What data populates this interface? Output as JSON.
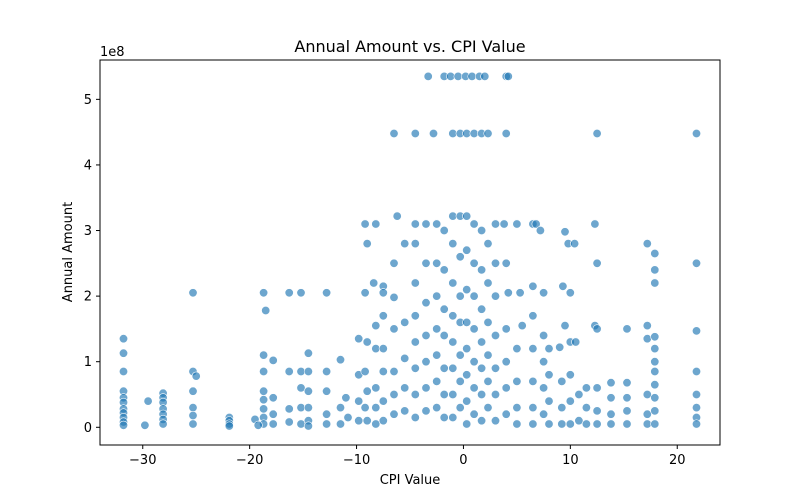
{
  "chart_data": {
    "type": "scatter",
    "title": "Annual Amount vs. CPI Value",
    "xlabel": "CPI Value",
    "ylabel": "Annual Amount",
    "y_offset_label": "1e8",
    "xlim": [
      -34,
      24
    ],
    "ylim": [
      -0.27,
      5.6
    ],
    "x_ticks": [
      -30,
      -20,
      -10,
      0,
      10,
      20
    ],
    "x_tick_labels": [
      "−30",
      "−20",
      "−10",
      "0",
      "10",
      "20"
    ],
    "y_ticks": [
      0,
      1,
      2,
      3,
      4,
      5
    ],
    "y_tick_labels": [
      "0",
      "1",
      "2",
      "3",
      "4",
      "5"
    ],
    "grid": false,
    "legend": "none",
    "colors": {
      "marker_fill": "#1f77b4",
      "marker_edge": "#ffffff",
      "axes": "#000000"
    },
    "marker_alpha": 0.65,
    "series": [
      {
        "points": [
          [
            -31.8,
            1.35
          ],
          [
            -31.8,
            1.13
          ],
          [
            -31.8,
            0.85
          ],
          [
            -31.8,
            0.55
          ],
          [
            -31.8,
            0.45
          ],
          [
            -31.8,
            0.38
          ],
          [
            -31.8,
            0.28
          ],
          [
            -31.8,
            0.22
          ],
          [
            -31.8,
            0.15
          ],
          [
            -31.8,
            0.08
          ],
          [
            -31.8,
            0.03
          ],
          [
            -29.8,
            0.03
          ],
          [
            -29.5,
            0.4
          ],
          [
            -28.1,
            0.52
          ],
          [
            -28.1,
            0.45
          ],
          [
            -28.1,
            0.38
          ],
          [
            -28.1,
            0.28
          ],
          [
            -28.1,
            0.2
          ],
          [
            -28.1,
            0.12
          ],
          [
            -28.1,
            0.05
          ],
          [
            -25.3,
            2.05
          ],
          [
            -25.3,
            0.85
          ],
          [
            -25.0,
            0.78
          ],
          [
            -25.3,
            0.55
          ],
          [
            -25.3,
            0.3
          ],
          [
            -25.3,
            0.18
          ],
          [
            -25.3,
            0.05
          ],
          [
            -21.9,
            0.15
          ],
          [
            -21.9,
            0.1
          ],
          [
            -21.9,
            0.05
          ],
          [
            -21.9,
            0.02
          ],
          [
            -18.7,
            2.05
          ],
          [
            -18.5,
            1.78
          ],
          [
            -18.7,
            1.1
          ],
          [
            -18.7,
            0.85
          ],
          [
            -18.7,
            0.55
          ],
          [
            -18.7,
            0.42
          ],
          [
            -18.7,
            0.28
          ],
          [
            -18.7,
            0.15
          ],
          [
            -18.7,
            0.05
          ],
          [
            -19.5,
            0.12
          ],
          [
            -19.2,
            0.03
          ],
          [
            -17.8,
            1.02
          ],
          [
            -17.8,
            0.45
          ],
          [
            -17.8,
            0.2
          ],
          [
            -17.8,
            0.05
          ],
          [
            -16.3,
            2.05
          ],
          [
            -16.3,
            0.85
          ],
          [
            -16.3,
            0.28
          ],
          [
            -16.3,
            0.08
          ],
          [
            -15.2,
            2.05
          ],
          [
            -15.2,
            0.85
          ],
          [
            -15.2,
            0.6
          ],
          [
            -15.2,
            0.3
          ],
          [
            -15.2,
            0.05
          ],
          [
            -14.5,
            1.13
          ],
          [
            -14.5,
            0.85
          ],
          [
            -14.5,
            0.55
          ],
          [
            -14.5,
            0.3
          ],
          [
            -14.5,
            0.1
          ],
          [
            -14.5,
            0.02
          ],
          [
            -12.8,
            2.05
          ],
          [
            -12.8,
            0.85
          ],
          [
            -12.8,
            0.55
          ],
          [
            -12.8,
            0.2
          ],
          [
            -12.8,
            0.05
          ],
          [
            -11.5,
            1.03
          ],
          [
            -11.5,
            0.3
          ],
          [
            -11.5,
            0.05
          ],
          [
            -11.0,
            0.45
          ],
          [
            -10.8,
            0.15
          ],
          [
            -9.8,
            1.35
          ],
          [
            -9.8,
            0.8
          ],
          [
            -9.8,
            0.4
          ],
          [
            -9.8,
            0.1
          ],
          [
            -9.2,
            3.1
          ],
          [
            -9.0,
            2.8
          ],
          [
            -9.2,
            2.05
          ],
          [
            -9.0,
            1.3
          ],
          [
            -9.2,
            0.85
          ],
          [
            -9.0,
            0.55
          ],
          [
            -9.2,
            0.3
          ],
          [
            -9.0,
            0.1
          ],
          [
            -8.2,
            3.1
          ],
          [
            -8.4,
            2.2
          ],
          [
            -8.2,
            1.55
          ],
          [
            -8.2,
            1.2
          ],
          [
            -8.2,
            0.6
          ],
          [
            -8.2,
            0.3
          ],
          [
            -8.2,
            0.05
          ],
          [
            -7.5,
            2.15
          ],
          [
            -7.5,
            2.05
          ],
          [
            -7.5,
            1.7
          ],
          [
            -7.5,
            1.2
          ],
          [
            -7.5,
            0.85
          ],
          [
            -7.5,
            0.4
          ],
          [
            -7.5,
            0.1
          ],
          [
            -6.5,
            4.48
          ],
          [
            -6.2,
            3.22
          ],
          [
            -6.5,
            2.5
          ],
          [
            -6.5,
            1.98
          ],
          [
            -6.5,
            1.5
          ],
          [
            -6.5,
            0.85
          ],
          [
            -6.5,
            0.5
          ],
          [
            -6.5,
            0.2
          ],
          [
            -5.5,
            2.8
          ],
          [
            -5.5,
            1.6
          ],
          [
            -5.5,
            1.05
          ],
          [
            -5.5,
            0.6
          ],
          [
            -5.5,
            0.25
          ],
          [
            -4.5,
            4.48
          ],
          [
            -4.5,
            3.1
          ],
          [
            -4.5,
            2.8
          ],
          [
            -4.5,
            2.2
          ],
          [
            -4.5,
            1.7
          ],
          [
            -4.5,
            1.3
          ],
          [
            -4.5,
            0.9
          ],
          [
            -4.5,
            0.5
          ],
          [
            -4.5,
            0.15
          ],
          [
            -3.3,
            5.35
          ],
          [
            -3.5,
            3.1
          ],
          [
            -3.5,
            2.5
          ],
          [
            -3.5,
            1.9
          ],
          [
            -3.5,
            1.4
          ],
          [
            -3.5,
            1.0
          ],
          [
            -3.5,
            0.6
          ],
          [
            -3.5,
            0.25
          ],
          [
            -2.8,
            4.48
          ],
          [
            -2.5,
            3.1
          ],
          [
            -2.5,
            2.5
          ],
          [
            -2.5,
            2.0
          ],
          [
            -2.5,
            1.5
          ],
          [
            -2.5,
            1.1
          ],
          [
            -2.5,
            0.7
          ],
          [
            -2.5,
            0.3
          ],
          [
            -1.8,
            5.35
          ],
          [
            -1.8,
            3.0
          ],
          [
            -1.8,
            2.4
          ],
          [
            -1.8,
            1.8
          ],
          [
            -1.8,
            1.4
          ],
          [
            -1.8,
            0.9
          ],
          [
            -1.8,
            0.5
          ],
          [
            -1.8,
            0.15
          ],
          [
            -1.2,
            5.35
          ],
          [
            -1.0,
            4.48
          ],
          [
            -1.0,
            3.22
          ],
          [
            -1.0,
            2.8
          ],
          [
            -1.0,
            2.2
          ],
          [
            -1.0,
            1.7
          ],
          [
            -1.0,
            1.3
          ],
          [
            -1.0,
            0.9
          ],
          [
            -1.0,
            0.5
          ],
          [
            -1.0,
            0.15
          ],
          [
            -0.5,
            5.35
          ],
          [
            -0.3,
            4.48
          ],
          [
            -0.3,
            3.22
          ],
          [
            -0.3,
            2.6
          ],
          [
            -0.3,
            2.0
          ],
          [
            -0.3,
            1.6
          ],
          [
            -0.3,
            1.1
          ],
          [
            -0.3,
            0.7
          ],
          [
            -0.3,
            0.3
          ],
          [
            0.2,
            5.35
          ],
          [
            0.3,
            4.48
          ],
          [
            0.3,
            3.22
          ],
          [
            0.3,
            2.7
          ],
          [
            0.3,
            2.1
          ],
          [
            0.3,
            1.6
          ],
          [
            0.3,
            1.2
          ],
          [
            0.3,
            0.8
          ],
          [
            0.3,
            0.4
          ],
          [
            0.3,
            0.05
          ],
          [
            0.8,
            5.35
          ],
          [
            1.0,
            4.48
          ],
          [
            1.0,
            3.1
          ],
          [
            1.0,
            2.5
          ],
          [
            1.0,
            2.0
          ],
          [
            1.0,
            1.5
          ],
          [
            1.0,
            1.0
          ],
          [
            1.0,
            0.6
          ],
          [
            1.0,
            0.2
          ],
          [
            1.5,
            5.35
          ],
          [
            1.7,
            4.48
          ],
          [
            1.7,
            3.0
          ],
          [
            1.7,
            2.4
          ],
          [
            1.7,
            1.8
          ],
          [
            1.7,
            1.3
          ],
          [
            1.7,
            0.9
          ],
          [
            1.7,
            0.5
          ],
          [
            1.7,
            0.1
          ],
          [
            2.0,
            5.35
          ],
          [
            2.3,
            4.48
          ],
          [
            2.3,
            2.8
          ],
          [
            2.3,
            2.2
          ],
          [
            2.3,
            1.6
          ],
          [
            2.3,
            1.1
          ],
          [
            2.3,
            0.7
          ],
          [
            2.3,
            0.3
          ],
          [
            3.0,
            3.1
          ],
          [
            3.0,
            2.5
          ],
          [
            3.0,
            2.0
          ],
          [
            3.0,
            1.4
          ],
          [
            3.0,
            0.9
          ],
          [
            3.0,
            0.5
          ],
          [
            3.0,
            0.1
          ],
          [
            4.0,
            5.35
          ],
          [
            4.2,
            5.35
          ],
          [
            4.0,
            4.48
          ],
          [
            3.8,
            3.1
          ],
          [
            4.0,
            2.5
          ],
          [
            4.2,
            2.05
          ],
          [
            4.0,
            1.5
          ],
          [
            4.0,
            1.0
          ],
          [
            4.0,
            0.6
          ],
          [
            4.0,
            0.2
          ],
          [
            5.0,
            3.1
          ],
          [
            5.3,
            2.05
          ],
          [
            5.5,
            1.55
          ],
          [
            5.0,
            1.2
          ],
          [
            5.0,
            0.7
          ],
          [
            5.0,
            0.3
          ],
          [
            5.0,
            0.05
          ],
          [
            6.5,
            3.1
          ],
          [
            6.8,
            3.1
          ],
          [
            6.5,
            2.15
          ],
          [
            6.5,
            1.7
          ],
          [
            6.5,
            1.2
          ],
          [
            6.5,
            0.7
          ],
          [
            6.5,
            0.3
          ],
          [
            6.5,
            0.05
          ],
          [
            7.2,
            3.0
          ],
          [
            7.5,
            2.05
          ],
          [
            7.5,
            1.4
          ],
          [
            7.5,
            1.0
          ],
          [
            7.5,
            0.6
          ],
          [
            7.5,
            0.2
          ],
          [
            8.0,
            1.2
          ],
          [
            8.0,
            0.8
          ],
          [
            8.0,
            0.4
          ],
          [
            8.0,
            0.05
          ],
          [
            9.0,
            1.22
          ],
          [
            9.3,
            2.15
          ],
          [
            9.5,
            1.55
          ],
          [
            9.2,
            0.7
          ],
          [
            9.2,
            0.3
          ],
          [
            9.2,
            0.05
          ],
          [
            9.8,
            2.8
          ],
          [
            10.0,
            2.05
          ],
          [
            10.0,
            1.3
          ],
          [
            10.0,
            0.8
          ],
          [
            10.0,
            0.4
          ],
          [
            10.0,
            0.05
          ],
          [
            9.5,
            2.98
          ],
          [
            10.4,
            2.8
          ],
          [
            10.5,
            1.3
          ],
          [
            10.8,
            0.5
          ],
          [
            10.8,
            0.1
          ],
          [
            11.5,
            0.6
          ],
          [
            11.5,
            0.3
          ],
          [
            11.5,
            0.05
          ],
          [
            12.3,
            3.1
          ],
          [
            12.5,
            2.5
          ],
          [
            12.3,
            1.55
          ],
          [
            12.5,
            1.5
          ],
          [
            12.5,
            0.6
          ],
          [
            12.5,
            0.25
          ],
          [
            12.5,
            0.05
          ],
          [
            12.5,
            4.48
          ],
          [
            13.8,
            0.68
          ],
          [
            13.8,
            0.45
          ],
          [
            13.8,
            0.2
          ],
          [
            13.8,
            0.05
          ],
          [
            15.3,
            1.5
          ],
          [
            15.3,
            0.68
          ],
          [
            15.3,
            0.45
          ],
          [
            15.3,
            0.25
          ],
          [
            15.3,
            0.05
          ],
          [
            17.2,
            2.8
          ],
          [
            17.2,
            1.55
          ],
          [
            17.2,
            1.35
          ],
          [
            17.2,
            0.5
          ],
          [
            17.2,
            0.2
          ],
          [
            17.2,
            0.05
          ],
          [
            17.9,
            2.65
          ],
          [
            17.9,
            2.4
          ],
          [
            17.9,
            2.2
          ],
          [
            17.9,
            1.38
          ],
          [
            17.9,
            1.2
          ],
          [
            17.9,
            1.0
          ],
          [
            17.9,
            0.85
          ],
          [
            17.9,
            0.65
          ],
          [
            17.9,
            0.45
          ],
          [
            17.9,
            0.25
          ],
          [
            17.9,
            0.05
          ],
          [
            21.8,
            4.48
          ],
          [
            21.8,
            2.5
          ],
          [
            21.8,
            1.47
          ],
          [
            21.8,
            0.85
          ],
          [
            21.8,
            0.5
          ],
          [
            21.8,
            0.3
          ],
          [
            21.8,
            0.15
          ],
          [
            21.8,
            0.05
          ]
        ]
      }
    ]
  }
}
